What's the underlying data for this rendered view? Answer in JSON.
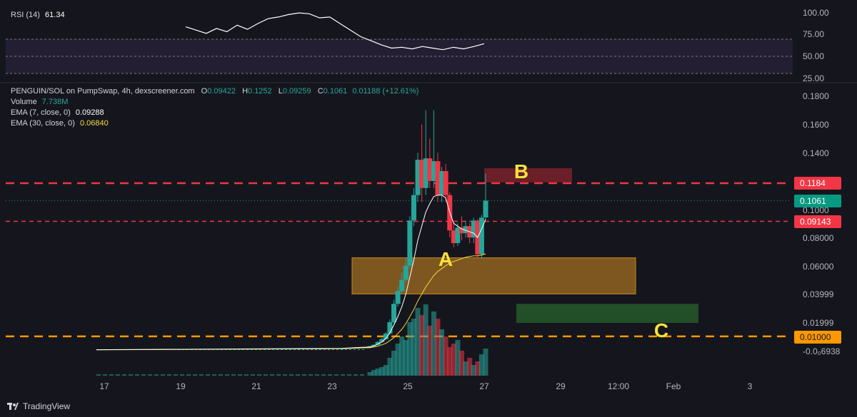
{
  "rsi": {
    "label": "RSI (14)",
    "value": "61.34",
    "axis_ticks": [
      "100.00",
      "75.00",
      "50.00",
      "25.00"
    ]
  },
  "legend": {
    "pair": "PENGUIN/SOL on PumpSwap, 4h, dexscreener.com",
    "o_label": "O",
    "o_value": "0.09422",
    "h_label": "H",
    "h_value": "0.1252",
    "l_label": "L",
    "l_value": "0.09259",
    "c_label": "C",
    "c_value": "0.1061",
    "change": "0.01188 (+12.61%)",
    "volume_label": "Volume",
    "volume_value": "7.738M",
    "ema7_label": "EMA (7, close, 0)",
    "ema7_value": "0.09288",
    "ema30_label": "EMA (30, close, 0)",
    "ema30_value": "0.06840"
  },
  "price_axis_ticks": [
    "0.1800",
    "0.1600",
    "0.1400",
    "0.1000",
    "0.08000",
    "0.06000",
    "0.03999",
    "0.01999",
    "-0.0₀6938"
  ],
  "price_labels": [
    {
      "text": "0.1184",
      "color": "#f23645"
    },
    {
      "text": "0.1061",
      "color": "#089981"
    },
    {
      "text": "0.09143",
      "color": "#f23645"
    },
    {
      "text": "0.01000",
      "color": "#ff9800"
    }
  ],
  "time_axis_ticks": [
    "17",
    "19",
    "21",
    "23",
    "25",
    "27",
    "29",
    "12:00",
    "Feb",
    "3"
  ],
  "annotations": [
    "A",
    "B",
    "C"
  ],
  "branding": {
    "name": "TradingView"
  },
  "colors": {
    "up": "#26a69a",
    "down": "#f23645",
    "ema7": "#ffffff",
    "ema30": "#f5d845",
    "resistance": "#f23645",
    "support": "#ff9800",
    "zone_a": "#ffa726",
    "zone_b": "#b22833",
    "zone_c": "#2e7d32",
    "rsi_band": "#7e57c2"
  },
  "chart_data": {
    "type": "candlestick",
    "timeframe": "4h",
    "price_range": [
      -0.006938,
      0.19
    ],
    "candles": [
      [
        0.002,
        0.003,
        0.0035,
        0.0015
      ],
      [
        0.003,
        0.004,
        0.0045,
        0.0025
      ],
      [
        0.004,
        0.006,
        0.0065,
        0.0035
      ],
      [
        0.006,
        0.008,
        0.009,
        0.0055
      ],
      [
        0.008,
        0.012,
        0.013,
        0.0075
      ],
      [
        0.012,
        0.02,
        0.022,
        0.011
      ],
      [
        0.02,
        0.033,
        0.036,
        0.019
      ],
      [
        0.033,
        0.042,
        0.045,
        0.031
      ],
      [
        0.042,
        0.05,
        0.055,
        0.04
      ],
      [
        0.05,
        0.06,
        0.065,
        0.048
      ],
      [
        0.06,
        0.092,
        0.095,
        0.058
      ],
      [
        0.092,
        0.11,
        0.115,
        0.088
      ],
      [
        0.11,
        0.135,
        0.14,
        0.105
      ],
      [
        0.135,
        0.115,
        0.16,
        0.105
      ],
      [
        0.115,
        0.136,
        0.17,
        0.11
      ],
      [
        0.136,
        0.12,
        0.15,
        0.115
      ],
      [
        0.12,
        0.134,
        0.17,
        0.115
      ],
      [
        0.134,
        0.11,
        0.14,
        0.105
      ],
      [
        0.11,
        0.127,
        0.13,
        0.105
      ],
      [
        0.127,
        0.11,
        0.132,
        0.105
      ],
      [
        0.11,
        0.085,
        0.112,
        0.08
      ],
      [
        0.085,
        0.076,
        0.09,
        0.073
      ],
      [
        0.076,
        0.087,
        0.09,
        0.074
      ],
      [
        0.087,
        0.083,
        0.095,
        0.078
      ],
      [
        0.083,
        0.088,
        0.092,
        0.08
      ],
      [
        0.088,
        0.08,
        0.09,
        0.076
      ],
      [
        0.08,
        0.092,
        0.094,
        0.076
      ],
      [
        0.092,
        0.068,
        0.093,
        0.065
      ],
      [
        0.068,
        0.094,
        0.096,
        0.065
      ],
      [
        0.0942,
        0.1061,
        0.1252,
        0.0926
      ]
    ],
    "volume_relative": [
      0.05,
      0.08,
      0.1,
      0.12,
      0.15,
      0.25,
      0.35,
      0.45,
      0.55,
      0.5,
      0.75,
      0.8,
      0.95,
      0.85,
      1.0,
      0.7,
      0.9,
      0.8,
      0.65,
      0.55,
      0.4,
      0.45,
      0.5,
      0.35,
      0.2,
      0.25,
      0.15,
      0.2,
      0.3,
      0.38
    ],
    "ema7": [
      0.0025,
      0.0032,
      0.0045,
      0.006,
      0.0085,
      0.0125,
      0.018,
      0.024,
      0.031,
      0.04,
      0.052,
      0.064,
      0.078,
      0.088,
      0.098,
      0.104,
      0.109,
      0.11,
      0.11,
      0.108,
      0.098,
      0.09,
      0.088,
      0.086,
      0.085,
      0.084,
      0.083,
      0.08,
      0.086,
      0.09288
    ],
    "ema30": [
      0.002,
      0.0025,
      0.003,
      0.004,
      0.005,
      0.007,
      0.009,
      0.012,
      0.015,
      0.019,
      0.024,
      0.029,
      0.035,
      0.04,
      0.045,
      0.049,
      0.053,
      0.056,
      0.058,
      0.06,
      0.062,
      0.063,
      0.064,
      0.065,
      0.066,
      0.0665,
      0.067,
      0.067,
      0.0675,
      0.0684
    ],
    "rsi_values": [
      82,
      78,
      74,
      80,
      76,
      84,
      79,
      86,
      92,
      94,
      97,
      99,
      98,
      93,
      94,
      86,
      78,
      70,
      65,
      60,
      56,
      57,
      55,
      58,
      56,
      54,
      57,
      55,
      58,
      61.34
    ],
    "horizontal_lines": [
      {
        "price": 0.1184,
        "style": "dashed",
        "color": "#f23645"
      },
      {
        "price": 0.09143,
        "style": "dashed",
        "color": "#f23645"
      },
      {
        "price": 0.1061,
        "style": "dotted",
        "color": "#089981"
      },
      {
        "price": 0.01,
        "style": "dashed",
        "color": "#ff9800"
      }
    ],
    "zones": [
      {
        "label": "A",
        "price_low": 0.04,
        "price_high": 0.0656
      },
      {
        "label": "B",
        "price_low": 0.119,
        "price_high": 0.129
      },
      {
        "label": "C",
        "price_low": 0.0195,
        "price_high": 0.033
      }
    ]
  }
}
